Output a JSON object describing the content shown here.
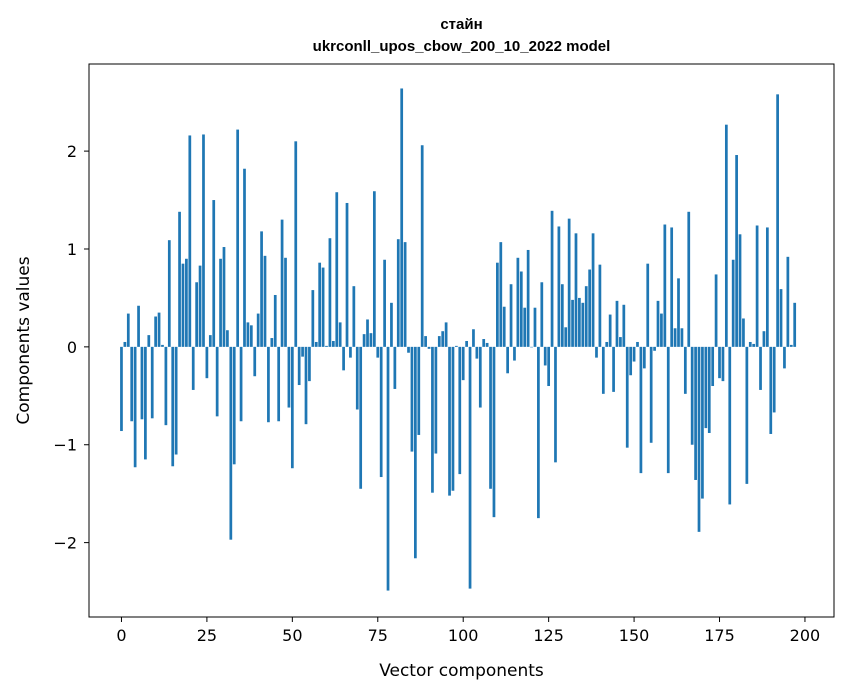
{
  "chart_data": {
    "type": "bar",
    "title": "стайн",
    "subtitle": "ukrconll_upos_cbow_200_10_2022 model",
    "xlabel": "Vector components",
    "ylabel": "Components values",
    "xlim": [
      -9.5,
      208.5
    ],
    "ylim": [
      -2.76,
      2.89
    ],
    "xticks": [
      0,
      25,
      50,
      75,
      100,
      125,
      150,
      175,
      200
    ],
    "yticks": [
      -2,
      -1,
      0,
      1,
      2
    ],
    "ytick_labels": [
      "−2",
      "−1",
      "0",
      "1",
      "2"
    ],
    "grid": false,
    "legend": "none",
    "bar_color": "#1f77b4",
    "values": [
      -0.86,
      0.05,
      0.34,
      -0.76,
      -1.23,
      0.42,
      -0.74,
      -1.15,
      0.12,
      -0.73,
      0.31,
      0.35,
      0.02,
      -0.8,
      1.09,
      -1.22,
      -1.1,
      1.38,
      0.85,
      0.9,
      2.16,
      -0.44,
      0.66,
      0.83,
      2.17,
      -0.32,
      0.12,
      1.5,
      -0.71,
      0.9,
      1.02,
      0.17,
      -1.97,
      -1.2,
      2.22,
      -0.76,
      1.82,
      0.25,
      0.22,
      -0.3,
      0.34,
      1.18,
      0.93,
      -0.77,
      0.09,
      0.53,
      -0.76,
      1.3,
      0.91,
      -0.62,
      -1.24,
      2.1,
      -0.39,
      -0.1,
      -0.79,
      -0.35,
      0.58,
      0.05,
      0.86,
      0.81,
      0.01,
      1.11,
      0.06,
      1.58,
      0.25,
      -0.24,
      1.47,
      -0.11,
      0.62,
      -0.64,
      -1.45,
      0.13,
      0.28,
      0.14,
      1.59,
      -0.11,
      -1.33,
      0.89,
      -2.49,
      0.45,
      -0.43,
      1.1,
      2.64,
      1.07,
      -0.06,
      -1.07,
      -2.16,
      -0.9,
      2.06,
      0.11,
      -0.02,
      -1.49,
      -1.09,
      0.11,
      0.16,
      0.25,
      -1.52,
      -1.47,
      0.01,
      -1.3,
      -0.34,
      0.06,
      -2.47,
      0.18,
      -0.12,
      -0.62,
      0.08,
      0.04,
      -1.45,
      -1.74,
      0.86,
      1.07,
      0.41,
      -0.27,
      0.64,
      -0.14,
      0.91,
      0.77,
      0.4,
      0.99,
      0.0,
      0.4,
      -1.75,
      0.66,
      -0.19,
      -0.4,
      1.39,
      -1.18,
      1.23,
      0.64,
      0.2,
      1.31,
      0.48,
      1.16,
      0.5,
      0.45,
      0.62,
      0.79,
      1.16,
      -0.11,
      0.84,
      -0.48,
      0.05,
      0.33,
      -0.46,
      0.47,
      0.1,
      0.43,
      -1.03,
      -0.29,
      -0.15,
      0.05,
      -1.29,
      -0.22,
      0.85,
      -0.98,
      -0.04,
      0.47,
      0.34,
      1.25,
      -1.29,
      1.22,
      0.19,
      0.7,
      0.19,
      -0.48,
      1.38,
      -1.0,
      -1.36,
      -1.89,
      -1.55,
      -0.83,
      -0.88,
      -0.4,
      0.74,
      -0.32,
      -0.35,
      2.27,
      -1.61,
      0.89,
      1.96,
      1.15,
      0.29,
      -1.4,
      0.05,
      0.03,
      1.24,
      -0.44,
      0.16,
      1.22,
      -0.89,
      -0.67,
      2.58,
      0.59,
      -0.22,
      0.92,
      0.02,
      0.45
    ]
  }
}
